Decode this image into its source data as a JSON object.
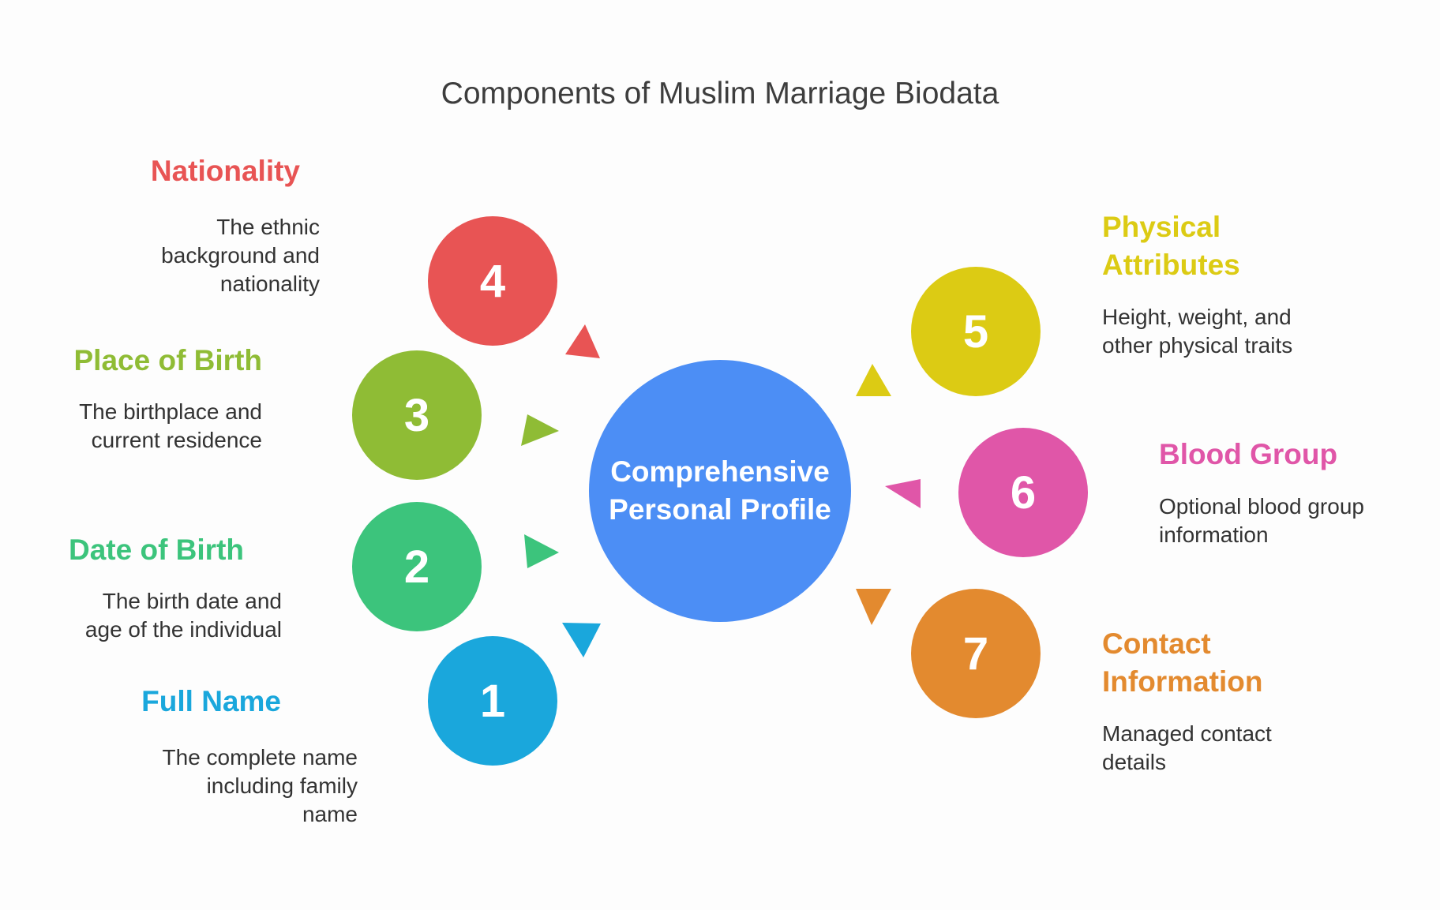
{
  "title": "Components of Muslim Marriage Biodata",
  "center": {
    "label_line1": "Comprehensive",
    "label_line2": "Personal Profile",
    "color": "#4c8ef5"
  },
  "items": [
    {
      "number": "1",
      "title": "Full Name",
      "title_line1": "Full Name",
      "title_line2": "",
      "desc_lines": [
        "The complete name",
        "including family",
        "name"
      ],
      "color": "#1aa7dc"
    },
    {
      "number": "2",
      "title": "Date of Birth",
      "title_line1": "Date of Birth",
      "title_line2": "",
      "desc_lines": [
        "The birth date and",
        "age of the individual"
      ],
      "color": "#3cc47c"
    },
    {
      "number": "3",
      "title": "Place of Birth",
      "title_line1": "Place of Birth",
      "title_line2": "",
      "desc_lines": [
        "The birthplace and",
        "current residence"
      ],
      "color": "#8fbc35"
    },
    {
      "number": "4",
      "title": "Nationality",
      "title_line1": "Nationality",
      "title_line2": "",
      "desc_lines": [
        "The ethnic",
        "background and",
        "nationality"
      ],
      "color": "#e85454"
    },
    {
      "number": "5",
      "title": "Physical Attributes",
      "title_line1": "Physical",
      "title_line2": "Attributes",
      "desc_lines": [
        "Height, weight, and",
        "other physical traits"
      ],
      "color": "#dccb14"
    },
    {
      "number": "6",
      "title": "Blood Group",
      "title_line1": "Blood Group",
      "title_line2": "",
      "desc_lines": [
        "Optional blood group",
        "information"
      ],
      "color": "#e056a8"
    },
    {
      "number": "7",
      "title": "Contact Information",
      "title_line1": "Contact",
      "title_line2": "Information",
      "desc_lines": [
        "Managed contact",
        "details"
      ],
      "color": "#e38a2f"
    }
  ]
}
